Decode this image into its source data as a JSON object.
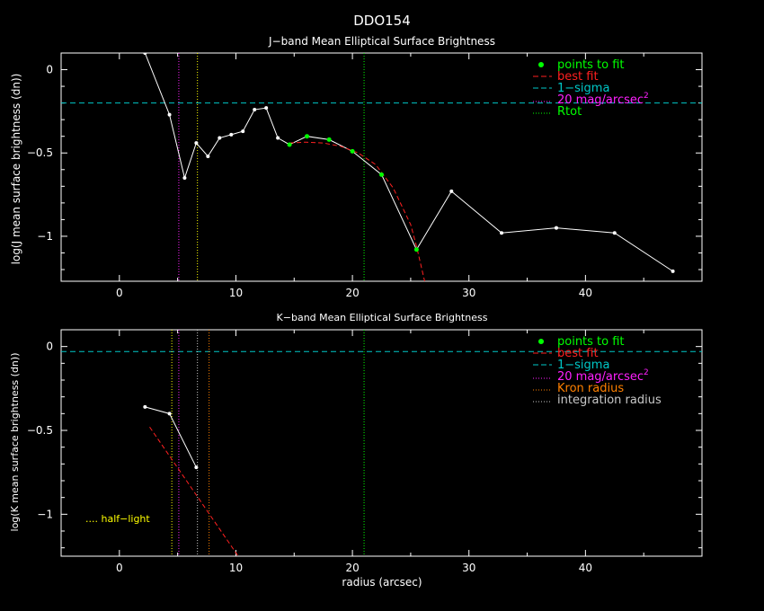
{
  "main_title": "DDO154",
  "colors": {
    "background": "#000000",
    "axes": "#ffffff",
    "data": "#ffffff",
    "fit_points": "#00ff00",
    "best_fit": "#ff2020",
    "sigma": "#00c8c8",
    "mag20": "#ff20ff",
    "rtot": "#00ff00",
    "kron": "#ff8000",
    "integration": "#c8c8c8",
    "half_light": "#ffff00"
  },
  "chart_data": [
    {
      "type": "line",
      "title": "J−band Mean Elliptical Surface Brightness",
      "xlabel": "",
      "ylabel": "log(J mean surface brightness (dn))",
      "xlim": [
        -5,
        50
      ],
      "ylim": [
        -1.27,
        0.1
      ],
      "x_ticks": [
        0,
        10,
        20,
        30,
        40
      ],
      "x_tick_labels": [
        "0",
        "10",
        "20",
        "30",
        "40"
      ],
      "y_ticks": [
        0,
        -0.5,
        -1
      ],
      "y_tick_labels": [
        "0",
        "−0.5",
        "−1"
      ],
      "series": [
        {
          "name": "data",
          "x": [
            2.2,
            4.3,
            5.6,
            6.6,
            7.6,
            8.6,
            9.6,
            10.6,
            11.6,
            12.6,
            13.6,
            14.6,
            16.1,
            18.0,
            20.0,
            22.5,
            25.5,
            28.5,
            32.8,
            37.5,
            42.5,
            47.5
          ],
          "y": [
            0.1,
            -0.27,
            -0.65,
            -0.44,
            -0.52,
            -0.41,
            -0.39,
            -0.37,
            -0.24,
            -0.23,
            -0.41,
            -0.45,
            -0.4,
            -0.42,
            -0.49,
            -0.63,
            -1.08,
            -0.73,
            -0.98,
            -0.95,
            -0.98,
            -1.21
          ]
        },
        {
          "name": "points to fit",
          "x": [
            14.6,
            16.1,
            18.0,
            20.0,
            22.5,
            25.5
          ],
          "y": [
            -0.45,
            -0.4,
            -0.42,
            -0.49,
            -0.63,
            -1.08
          ]
        },
        {
          "name": "best fit",
          "x": [
            14.6,
            16.0,
            17.5,
            19.0,
            20.5,
            22.0,
            23.5,
            25.0,
            25.5,
            26.2
          ],
          "y": [
            -0.44,
            -0.435,
            -0.44,
            -0.46,
            -0.5,
            -0.57,
            -0.71,
            -0.93,
            -1.06,
            -1.27
          ]
        }
      ],
      "hlines": [
        {
          "name": "1-sigma",
          "y": -0.2
        }
      ],
      "vlines": [
        {
          "name": "20 mag/arcsec2",
          "x": 5.1
        },
        {
          "name": "half-light",
          "x": 6.7
        },
        {
          "name": "Rtot",
          "x": 21.0
        }
      ],
      "legend": {
        "placement": "top-right",
        "entries": [
          {
            "label": "points to fit",
            "marker": "dot",
            "color": "#00ff00"
          },
          {
            "label": "best fit",
            "marker": "dash",
            "color": "#ff2020"
          },
          {
            "label": "1−sigma",
            "marker": "dash",
            "color": "#00c8c8"
          },
          {
            "label": "20 mag/arcsec",
            "sup": "2",
            "marker": "dot-line",
            "color": "#ff20ff"
          },
          {
            "label": "Rtot",
            "marker": "dot-line",
            "color": "#00ff00"
          }
        ]
      }
    },
    {
      "type": "line",
      "title": "K−band Mean Elliptical Surface Brightness",
      "xlabel": "radius (arcsec)",
      "ylabel": "log(K mean surface brightness (dn))",
      "xlim": [
        -5,
        50
      ],
      "ylim": [
        -1.25,
        0.1
      ],
      "x_ticks": [
        0,
        10,
        20,
        30,
        40
      ],
      "x_tick_labels": [
        "0",
        "10",
        "20",
        "30",
        "40"
      ],
      "y_ticks": [
        0,
        -0.5,
        -1
      ],
      "y_tick_labels": [
        "0",
        "−0.5",
        "−1"
      ],
      "series": [
        {
          "name": "data",
          "x": [
            2.2,
            4.3,
            6.6
          ],
          "y": [
            -0.36,
            -0.4,
            -0.72
          ]
        },
        {
          "name": "best fit",
          "x": [
            2.6,
            10.2
          ],
          "y": [
            -0.48,
            -1.25
          ]
        }
      ],
      "hlines": [
        {
          "name": "1-sigma",
          "y": -0.03
        }
      ],
      "vlines": [
        {
          "name": "half-light",
          "x": 4.5
        },
        {
          "name": "20 mag/arcsec2",
          "x": 5.1
        },
        {
          "name": "integration radius",
          "x": 6.7
        },
        {
          "name": "Kron radius",
          "x": 7.7
        },
        {
          "name": "Rtot",
          "x": 21.0
        }
      ],
      "legend": {
        "placement": "top-right",
        "entries": [
          {
            "label": "points to fit",
            "marker": "dot",
            "color": "#00ff00"
          },
          {
            "label": "best fit",
            "marker": "dash",
            "color": "#ff2020"
          },
          {
            "label": "1−sigma",
            "marker": "dash",
            "color": "#00c8c8"
          },
          {
            "label": "20 mag/arcsec",
            "sup": "2",
            "marker": "dot-line",
            "color": "#ff20ff"
          },
          {
            "label": "Kron radius",
            "marker": "dot-line",
            "color": "#ff8000"
          },
          {
            "label": "integration radius",
            "marker": "dot-line",
            "color": "#c8c8c8"
          }
        ]
      },
      "annotation": {
        "label": "half−light",
        "marker": "....",
        "color": "#ffff00"
      }
    }
  ]
}
